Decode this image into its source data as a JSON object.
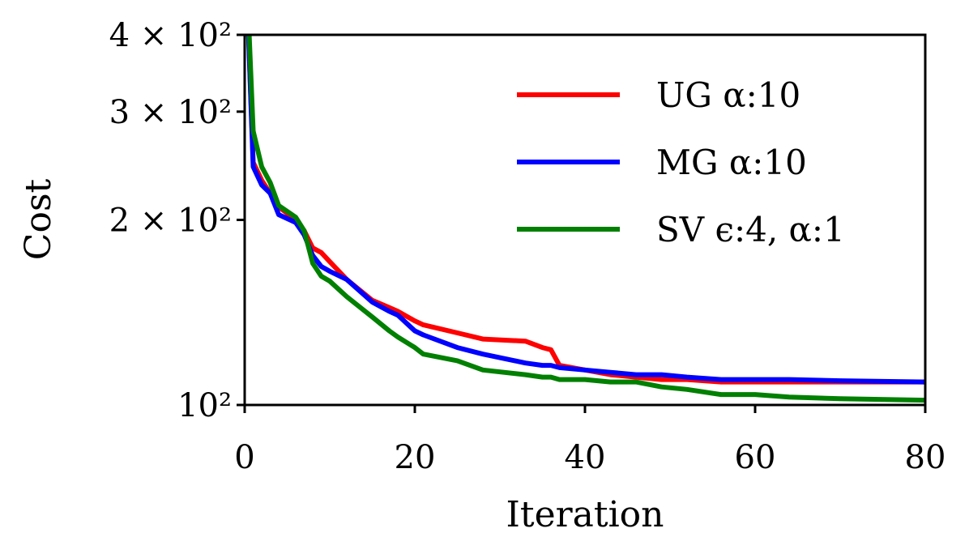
{
  "chart_data": {
    "type": "line",
    "xlabel": "Iteration",
    "ylabel": "Cost",
    "xlim": [
      0,
      80
    ],
    "ylim": [
      100,
      400
    ],
    "yscale": "log",
    "grid": false,
    "legend_position": "top-right",
    "x_ticks": [
      0,
      20,
      40,
      60,
      80
    ],
    "x_tick_labels": [
      "0",
      "20",
      "40",
      "60",
      "80"
    ],
    "y_ticks": [
      400,
      300,
      200,
      100
    ],
    "y_tick_labels": [
      "4 × 10²",
      "3 × 10²",
      "2 × 10²",
      "10²"
    ],
    "series": [
      {
        "name": "UG α:10",
        "color": "#ff0000",
        "x": [
          0,
          1,
          2,
          3,
          4,
          6,
          7,
          8,
          9,
          10,
          12,
          15,
          17,
          18,
          20,
          21,
          25,
          28,
          33,
          35,
          36,
          37,
          40,
          43,
          46,
          49,
          52,
          56,
          60,
          64,
          70,
          80
        ],
        "y": [
          600,
          248,
          232,
          221,
          210,
          200,
          192,
          180,
          177,
          171,
          160,
          148,
          144,
          142,
          137,
          135,
          131,
          128,
          127,
          124,
          123,
          116,
          114,
          112,
          111,
          110,
          110,
          109,
          109,
          109,
          109,
          109
        ]
      },
      {
        "name": "MG α:10",
        "color": "#0000ff",
        "x": [
          0,
          1,
          2,
          3,
          4,
          6,
          7,
          8,
          9,
          10,
          12,
          15,
          17,
          18,
          20,
          21,
          25,
          28,
          33,
          35,
          36,
          37,
          40,
          43,
          46,
          49,
          52,
          56,
          60,
          64,
          70,
          80
        ],
        "y": [
          600,
          244,
          228,
          221,
          204,
          198,
          189,
          175,
          168,
          165,
          160,
          147,
          142,
          140,
          132,
          130,
          124,
          121,
          117,
          116,
          116,
          115,
          114,
          113,
          112,
          112,
          111,
          110,
          110,
          110,
          109.5,
          109
        ]
      },
      {
        "name": "SV ϵ:4, α:1",
        "color": "#008000",
        "x": [
          0,
          1,
          2,
          3,
          4,
          6,
          7,
          8,
          9,
          10,
          12,
          15,
          17,
          18,
          20,
          21,
          25,
          28,
          33,
          35,
          36,
          37,
          40,
          43,
          46,
          49,
          52,
          56,
          60,
          64,
          70,
          80
        ],
        "y": [
          600,
          279,
          244,
          230,
          211,
          202,
          192,
          170,
          162,
          159,
          150,
          139,
          132,
          129,
          124,
          121,
          118,
          114,
          112,
          111,
          111,
          110,
          110,
          109,
          109,
          107,
          106,
          104,
          104,
          103,
          102.4,
          101.8
        ]
      }
    ]
  }
}
